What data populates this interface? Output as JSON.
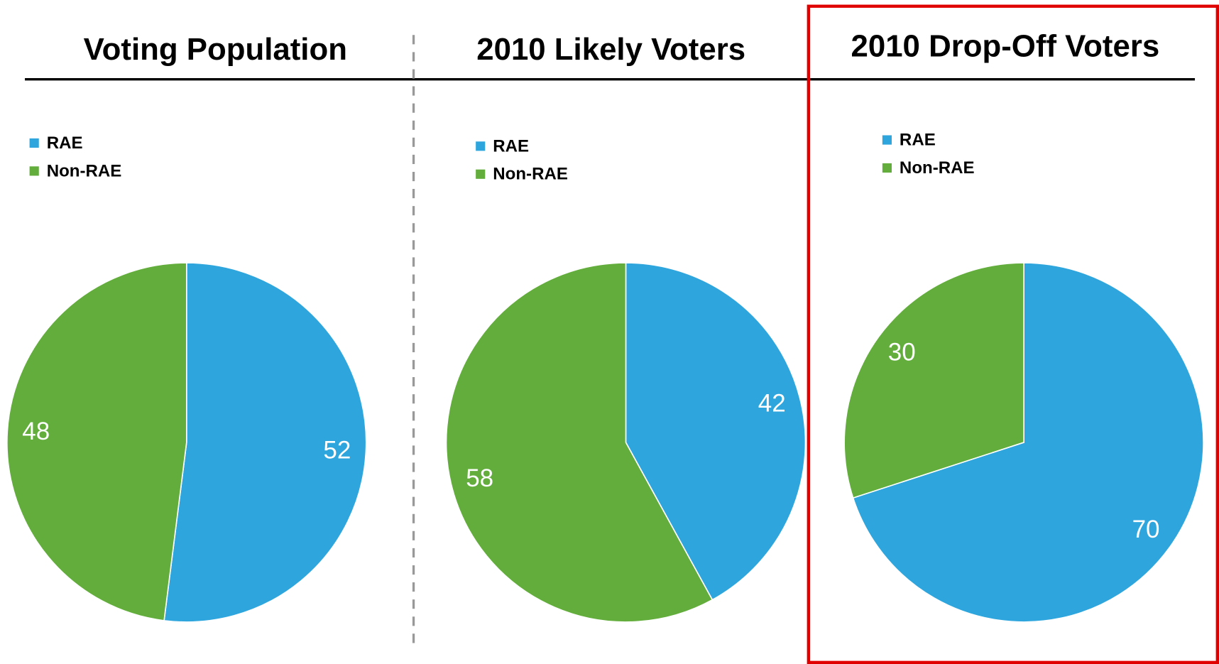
{
  "chart_data": [
    {
      "type": "pie",
      "title": "Voting Population",
      "categories": [
        "RAE",
        "Non-RAE"
      ],
      "values": [
        52,
        48
      ],
      "colors": [
        "#2ea6dd",
        "#62ad3b"
      ],
      "legend": "top-left"
    },
    {
      "type": "pie",
      "title": "2010 Likely Voters",
      "categories": [
        "RAE",
        "Non-RAE"
      ],
      "values": [
        42,
        58
      ],
      "colors": [
        "#2ea6dd",
        "#62ad3b"
      ],
      "legend": "top-left"
    },
    {
      "type": "pie",
      "title": "2010 Drop-Off Voters",
      "categories": [
        "RAE",
        "Non-RAE"
      ],
      "values": [
        70,
        30
      ],
      "colors": [
        "#2ea6dd",
        "#62ad3b"
      ],
      "legend": "top-left"
    }
  ]
}
